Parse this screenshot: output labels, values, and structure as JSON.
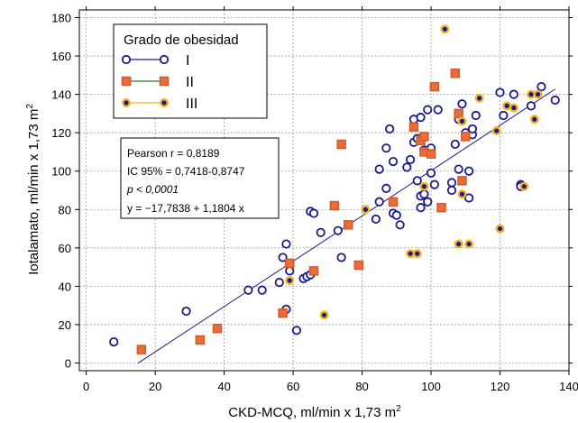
{
  "chart_data": {
    "type": "scatter",
    "xlabel": "CKD-MCQ, ml/min x 1,73 m",
    "xlabel_sup": "2",
    "ylabel": "Iotalamato, ml/min x 1,73 m",
    "ylabel_sup": "2",
    "xlim": [
      -2,
      140
    ],
    "ylim": [
      -4,
      184
    ],
    "x_ticks": [
      0,
      20,
      40,
      60,
      80,
      100,
      120,
      140
    ],
    "y_ticks": [
      0,
      20,
      40,
      60,
      80,
      100,
      120,
      140,
      160,
      180
    ],
    "grid": true,
    "legend": {
      "title": "Grado de obesidad",
      "placement": "top-left",
      "entries": [
        "I",
        "II",
        "III"
      ]
    },
    "series": [
      {
        "name": "I",
        "marker": "circle-open",
        "color": "#1a1a8c",
        "fill": "#ffffff",
        "points": [
          [
            8,
            11
          ],
          [
            29,
            27
          ],
          [
            47,
            38
          ],
          [
            51,
            38
          ],
          [
            56,
            42
          ],
          [
            57,
            55
          ],
          [
            58,
            62
          ],
          [
            58,
            28
          ],
          [
            59,
            48
          ],
          [
            61,
            17
          ],
          [
            63,
            44
          ],
          [
            64,
            45
          ],
          [
            65,
            46
          ],
          [
            65,
            79
          ],
          [
            66,
            78
          ],
          [
            68,
            68
          ],
          [
            73,
            69
          ],
          [
            74,
            55
          ],
          [
            76,
            72
          ],
          [
            84,
            75
          ],
          [
            85,
            84
          ],
          [
            85,
            101
          ],
          [
            87,
            91
          ],
          [
            87,
            112
          ],
          [
            88,
            122
          ],
          [
            89,
            78
          ],
          [
            89,
            105
          ],
          [
            90,
            77
          ],
          [
            91,
            72
          ],
          [
            93,
            102
          ],
          [
            94,
            106
          ],
          [
            95,
            127
          ],
          [
            95,
            115
          ],
          [
            96,
            117
          ],
          [
            96,
            95
          ],
          [
            97,
            81
          ],
          [
            97,
            87
          ],
          [
            97,
            128
          ],
          [
            98,
            88
          ],
          [
            98,
            111
          ],
          [
            99,
            84
          ],
          [
            99,
            132
          ],
          [
            100,
            99
          ],
          [
            100,
            112
          ],
          [
            101,
            93
          ],
          [
            102,
            132
          ],
          [
            106,
            94
          ],
          [
            106,
            90
          ],
          [
            107,
            114
          ],
          [
            108,
            101
          ],
          [
            108,
            127
          ],
          [
            109,
            135
          ],
          [
            110,
            120
          ],
          [
            111,
            100
          ],
          [
            111,
            86
          ],
          [
            112,
            119
          ],
          [
            112,
            122
          ],
          [
            113,
            129
          ],
          [
            120,
            141
          ],
          [
            121,
            129
          ],
          [
            124,
            140
          ],
          [
            126,
            93
          ],
          [
            126,
            92
          ],
          [
            129,
            134
          ],
          [
            132,
            144
          ],
          [
            136,
            137
          ]
        ]
      },
      {
        "name": "II",
        "marker": "square",
        "color": "#d65a28",
        "fill": "#e86d3a",
        "points": [
          [
            16,
            7
          ],
          [
            33,
            12
          ],
          [
            38,
            18
          ],
          [
            57,
            26
          ],
          [
            59,
            52
          ],
          [
            66,
            48
          ],
          [
            72,
            82
          ],
          [
            74,
            114
          ],
          [
            76,
            72
          ],
          [
            79,
            51
          ],
          [
            89,
            84
          ],
          [
            95,
            123
          ],
          [
            97,
            116
          ],
          [
            98,
            118
          ],
          [
            98,
            110
          ],
          [
            100,
            109
          ],
          [
            101,
            144
          ],
          [
            103,
            81
          ],
          [
            107,
            151
          ],
          [
            108,
            130
          ],
          [
            109,
            95
          ],
          [
            110,
            118
          ]
        ]
      },
      {
        "name": "III",
        "marker": "circle-filled",
        "color": "#f2b422",
        "fill": "#1a1a8c",
        "points": [
          [
            59,
            43
          ],
          [
            69,
            25
          ],
          [
            81,
            80
          ],
          [
            94,
            57
          ],
          [
            96,
            57
          ],
          [
            98,
            92
          ],
          [
            104,
            174
          ],
          [
            108,
            62
          ],
          [
            109,
            88
          ],
          [
            109,
            126
          ],
          [
            111,
            62
          ],
          [
            114,
            138
          ],
          [
            119,
            121
          ],
          [
            120,
            70
          ],
          [
            122,
            134
          ],
          [
            124,
            133
          ],
          [
            127,
            92
          ],
          [
            129,
            140
          ],
          [
            130,
            127
          ],
          [
            131,
            140
          ]
        ]
      }
    ],
    "regression": {
      "intercept": -17.7838,
      "slope": 1.1804,
      "x_range": [
        15,
        136
      ]
    },
    "annotation": {
      "lines": [
        "Pearson r = 0,8189",
        "IC 95% = 0,7418-0,8747",
        "p < 0,0001",
        "y = −17,7838 + 1,1804 x"
      ]
    }
  }
}
